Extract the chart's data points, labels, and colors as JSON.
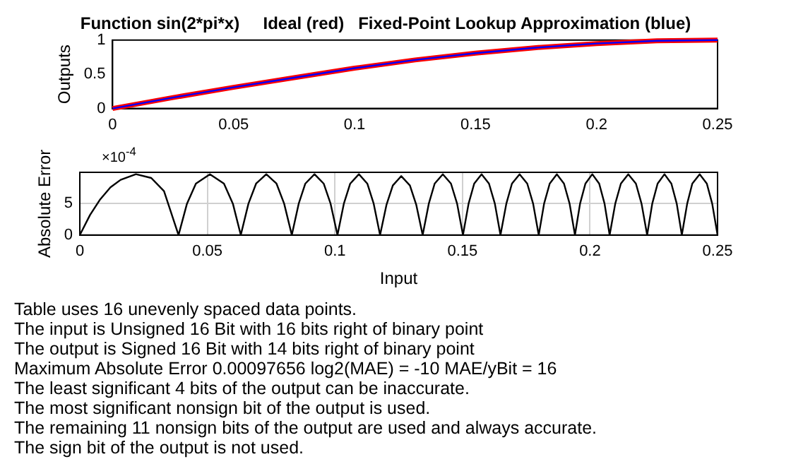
{
  "chart_data": [
    {
      "type": "line",
      "title": "Function sin(2*pi*x)     Ideal (red)   Fixed-Point Lookup Approximation (blue)",
      "ylabel": "Outputs",
      "x": [
        0,
        0.025,
        0.05,
        0.075,
        0.1,
        0.125,
        0.15,
        0.175,
        0.2,
        0.225,
        0.25
      ],
      "series": [
        {
          "color": "#ff0000",
          "values": [
            0,
            0.16,
            0.31,
            0.45,
            0.59,
            0.71,
            0.81,
            0.89,
            0.95,
            0.99,
            1
          ]
        },
        {
          "color": "#0000ff",
          "values": [
            0,
            0.16,
            0.31,
            0.45,
            0.59,
            0.71,
            0.81,
            0.89,
            0.95,
            0.99,
            1
          ]
        }
      ],
      "xlim": [
        0,
        0.25
      ],
      "xticks": [
        0,
        0.05,
        0.1,
        0.15,
        0.2,
        0.25
      ],
      "ylim": [
        0,
        1
      ],
      "yticks": [
        0,
        0.5,
        1
      ],
      "grid": false,
      "legend": false,
      "marker": "none",
      "line_style": "solid"
    },
    {
      "type": "line",
      "ylabel": "Absolute Error",
      "xlabel": "Input",
      "x": [
        0,
        0.004,
        0.008,
        0.012,
        0.016,
        0.022,
        0.028,
        0.033,
        0.0387,
        0.042,
        0.0455,
        0.051,
        0.0565,
        0.06,
        0.0631,
        0.0661,
        0.0691,
        0.0731,
        0.0771,
        0.0801,
        0.0831,
        0.0858,
        0.0884,
        0.092,
        0.0956,
        0.0983,
        0.101,
        0.1035,
        0.106,
        0.1094,
        0.1127,
        0.1152,
        0.1177,
        0.1202,
        0.1227,
        0.126,
        0.1294,
        0.1319,
        0.1344,
        0.1368,
        0.1391,
        0.1423,
        0.1455,
        0.1479,
        0.1502,
        0.1524,
        0.1546,
        0.1575,
        0.1604,
        0.1627,
        0.1649,
        0.1672,
        0.1694,
        0.1724,
        0.1754,
        0.1777,
        0.1799,
        0.182,
        0.1842,
        0.187,
        0.1898,
        0.192,
        0.1941,
        0.1961,
        0.1982,
        0.2009,
        0.2036,
        0.2057,
        0.2077,
        0.2099,
        0.2121,
        0.215,
        0.218,
        0.2202,
        0.2224,
        0.2244,
        0.2265,
        0.2292,
        0.2319,
        0.234,
        0.236,
        0.2381,
        0.2401,
        0.243,
        0.2458,
        0.2479,
        0.25
      ],
      "series": [
        {
          "color": "#000000",
          "values": [
            0,
            3.2,
            5.7,
            7.6,
            8.8,
            9.7,
            9.1,
            7.0,
            0,
            5.0,
            8.2,
            9.7,
            8.2,
            5.0,
            0,
            5.0,
            8.2,
            9.7,
            8.2,
            5.0,
            0,
            5.0,
            8.2,
            9.7,
            8.2,
            5.0,
            0,
            5.0,
            8.2,
            9.7,
            8.2,
            5.0,
            0,
            4.8,
            7.9,
            9.4,
            7.9,
            4.8,
            0,
            5.0,
            8.2,
            9.7,
            8.2,
            5.0,
            0,
            5.0,
            8.2,
            9.7,
            8.2,
            5.0,
            0,
            5.0,
            8.2,
            9.7,
            8.2,
            5.0,
            0,
            5.0,
            8.2,
            9.7,
            8.2,
            5.0,
            0,
            5.0,
            8.2,
            9.7,
            8.2,
            5.0,
            0,
            5.0,
            8.2,
            9.7,
            8.2,
            5.0,
            0,
            5.0,
            8.2,
            9.7,
            8.2,
            5.0,
            0,
            5.0,
            8.2,
            9.7,
            8.2,
            5.0,
            0
          ]
        }
      ],
      "xlim": [
        0,
        0.25
      ],
      "xticks": [
        0,
        0.05,
        0.1,
        0.15,
        0.2,
        0.25
      ],
      "ylim": [
        0,
        10
      ],
      "yticks": [
        0,
        5
      ],
      "grid": true,
      "legend": false,
      "marker": "none",
      "line_style": "solid",
      "annotations": [
        "×10$^{-4}$",
        "Table uses 16 unevenly spaced data points.",
        "The input is Unsigned 16 Bit with 16 bits right of binary point",
        "The output is Signed 16 Bit with 14 bits right of binary point",
        "Maximum Absolute Error  0.00097656   log2(MAE) = -10   MAE/yBit = 16",
        "The least significant 4 bits of the output can be inaccurate.",
        "The most significant nonsign bit of the output is used.",
        "The remaining 11 nonsign bits of the output are used and always accurate.",
        "The sign bit of the output is not used."
      ]
    }
  ]
}
